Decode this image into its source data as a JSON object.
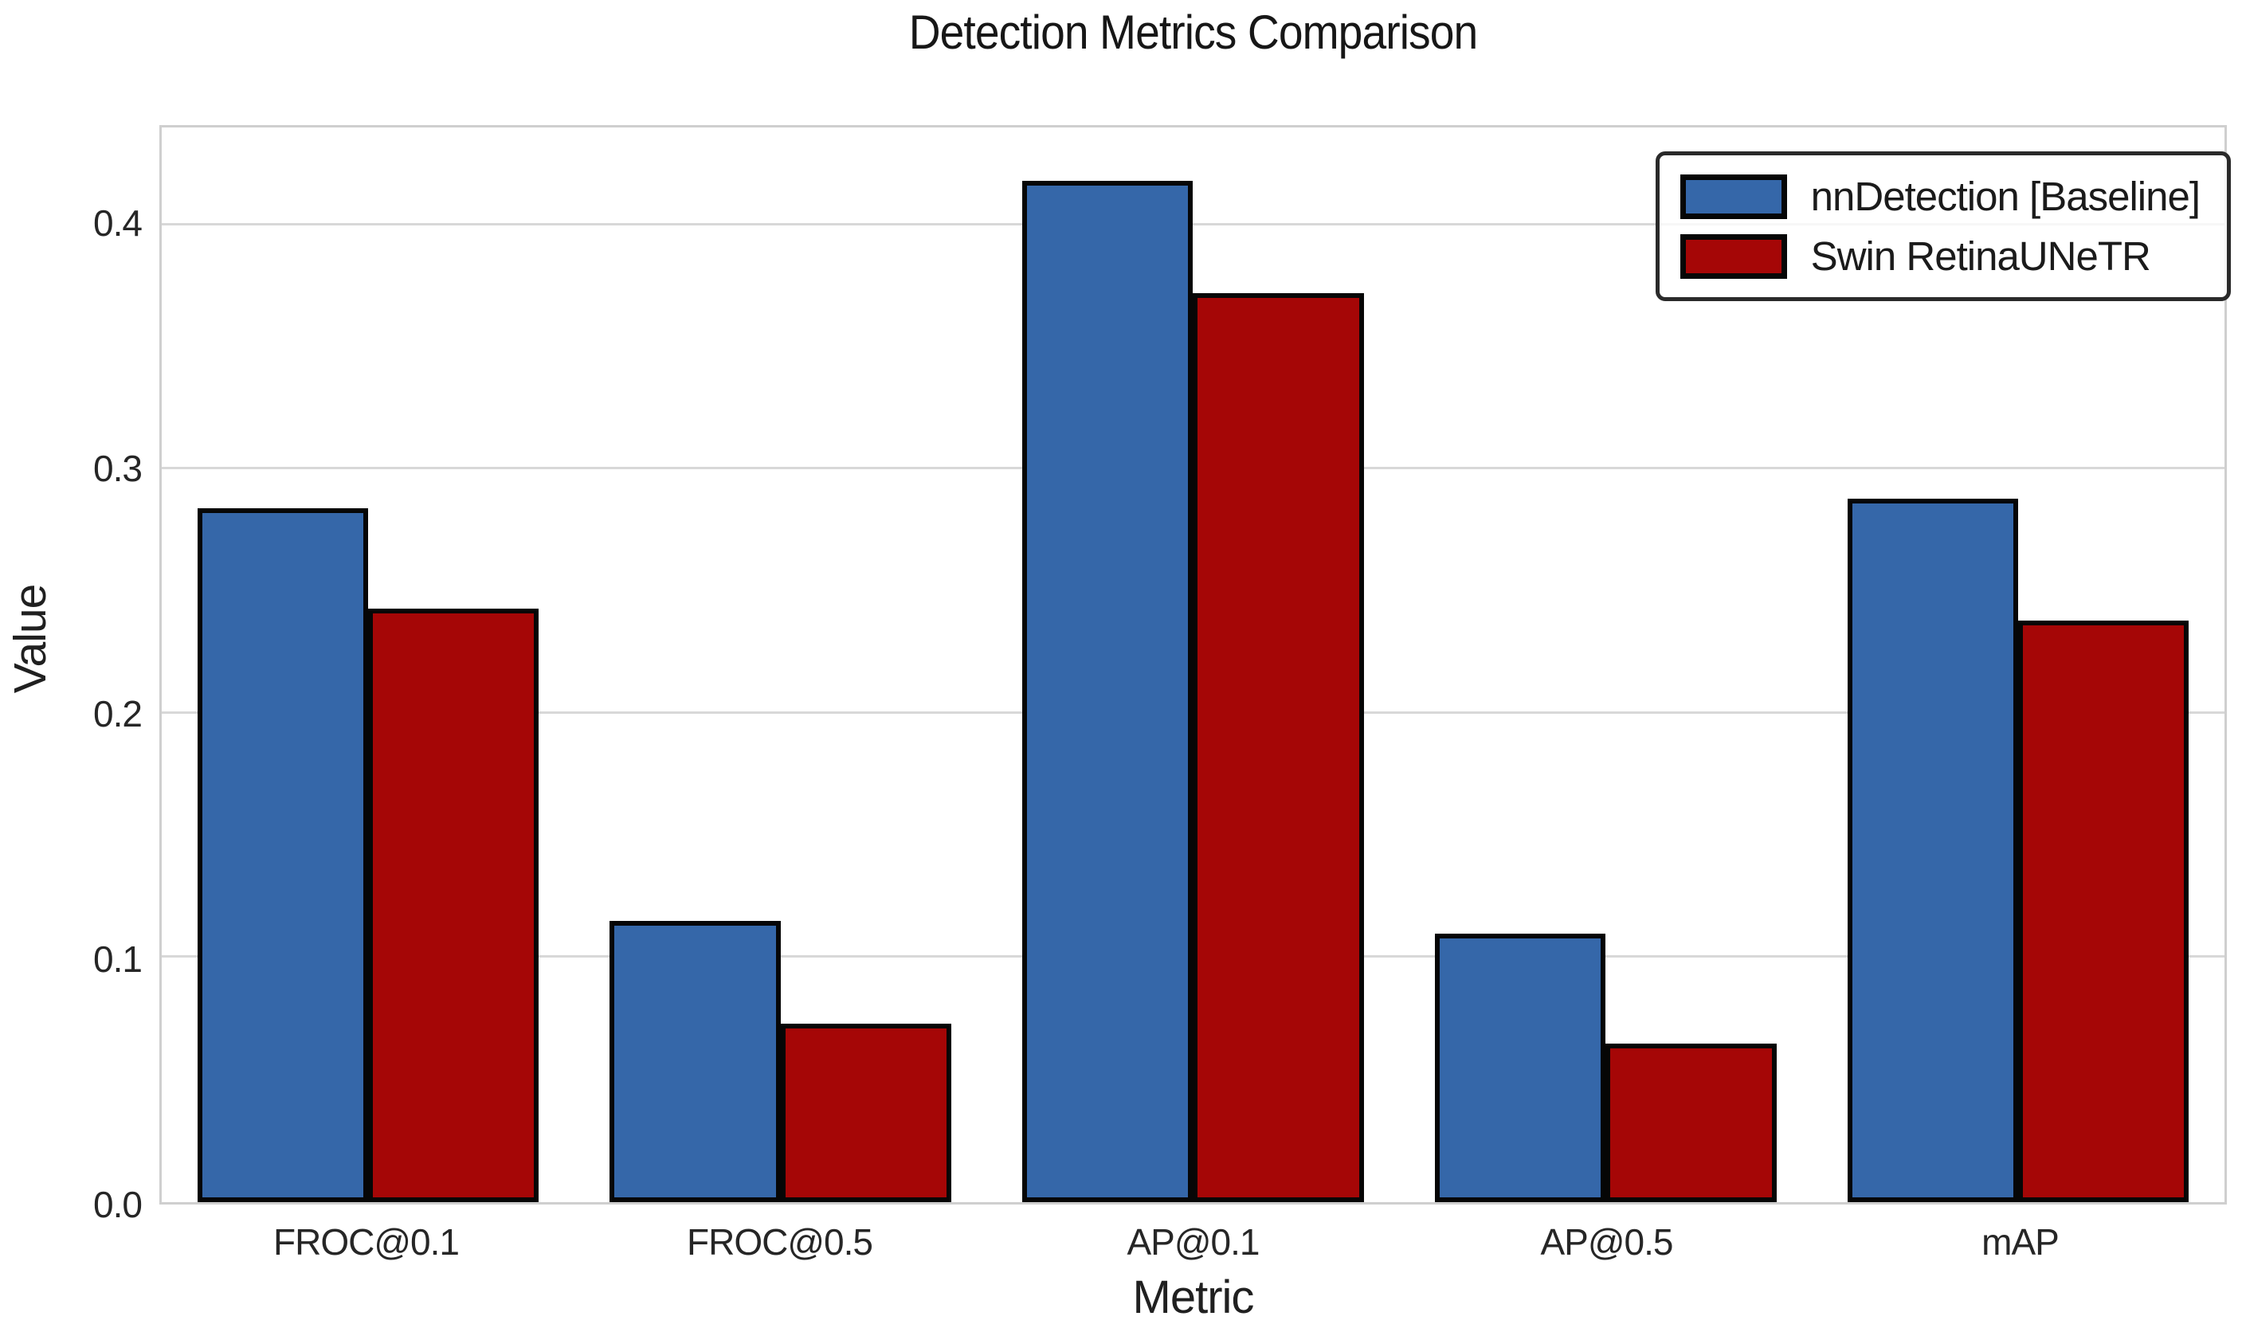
{
  "title": "Detection Metrics Comparison",
  "chart_data": {
    "type": "bar",
    "title": "Detection Metrics Comparison",
    "xlabel": "Metric",
    "ylabel": "Value",
    "categories": [
      "FROC@0.1",
      "FROC@0.5",
      "AP@0.1",
      "AP@0.5",
      "mAP"
    ],
    "series": [
      {
        "name": "nnDetection [Baseline]",
        "color": "#3567a9",
        "values": [
          0.284,
          0.115,
          0.418,
          0.11,
          0.288
        ]
      },
      {
        "name": "Swin RetinaUNeTR",
        "color": "#a50606",
        "values": [
          0.243,
          0.073,
          0.372,
          0.065,
          0.238
        ]
      }
    ],
    "ylim": [
      0,
      0.44
    ],
    "yticks": [
      "0.0",
      "0.1",
      "0.2",
      "0.3",
      "0.4"
    ],
    "grid": true,
    "legend_position": "upper right",
    "bar_edge_color": "#060606",
    "grid_color": "#d8d8d8"
  }
}
